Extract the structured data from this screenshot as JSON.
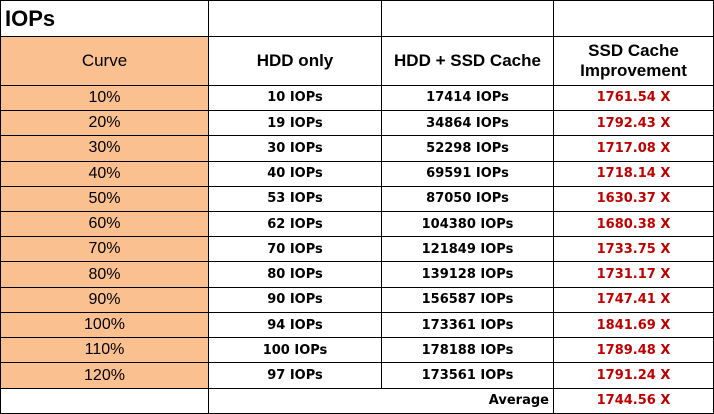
{
  "title": "IOPs",
  "headers": {
    "curve": "Curve",
    "hdd_only": "HDD only",
    "hdd_ssd": "HDD + SSD Cache",
    "improvement": "SSD Cache Improvement"
  },
  "rows": [
    {
      "curve": "10%",
      "hdd": "10 IOPs",
      "hdd_ssd": "17414 IOPs",
      "improvement": "1761.54 X"
    },
    {
      "curve": "20%",
      "hdd": "19 IOPs",
      "hdd_ssd": "34864 IOPs",
      "improvement": "1792.43 X"
    },
    {
      "curve": "30%",
      "hdd": "30 IOPs",
      "hdd_ssd": "52298 IOPs",
      "improvement": "1717.08 X"
    },
    {
      "curve": "40%",
      "hdd": "40 IOPs",
      "hdd_ssd": "69591 IOPs",
      "improvement": "1718.14 X"
    },
    {
      "curve": "50%",
      "hdd": "53 IOPs",
      "hdd_ssd": "87050 IOPs",
      "improvement": "1630.37 X"
    },
    {
      "curve": "60%",
      "hdd": "62 IOPs",
      "hdd_ssd": "104380 IOPs",
      "improvement": "1680.38 X"
    },
    {
      "curve": "70%",
      "hdd": "70 IOPs",
      "hdd_ssd": "121849 IOPs",
      "improvement": "1733.75 X"
    },
    {
      "curve": "80%",
      "hdd": "80 IOPs",
      "hdd_ssd": "139128 IOPs",
      "improvement": "1731.17 X"
    },
    {
      "curve": "90%",
      "hdd": "90 IOPs",
      "hdd_ssd": "156587 IOPs",
      "improvement": "1747.41 X"
    },
    {
      "curve": "100%",
      "hdd": "94 IOPs",
      "hdd_ssd": "173361 IOPs",
      "improvement": "1841.69 X"
    },
    {
      "curve": "110%",
      "hdd": "100 IOPs",
      "hdd_ssd": "178188 IOPs",
      "improvement": "1789.48 X"
    },
    {
      "curve": "120%",
      "hdd": "97 IOPs",
      "hdd_ssd": "173561 IOPs",
      "improvement": "1791.24 X"
    }
  ],
  "average": {
    "label": "Average",
    "value": "1744.56 X"
  },
  "colors": {
    "curve_fill": "#fac08f",
    "improvement_text": "#c00000"
  }
}
